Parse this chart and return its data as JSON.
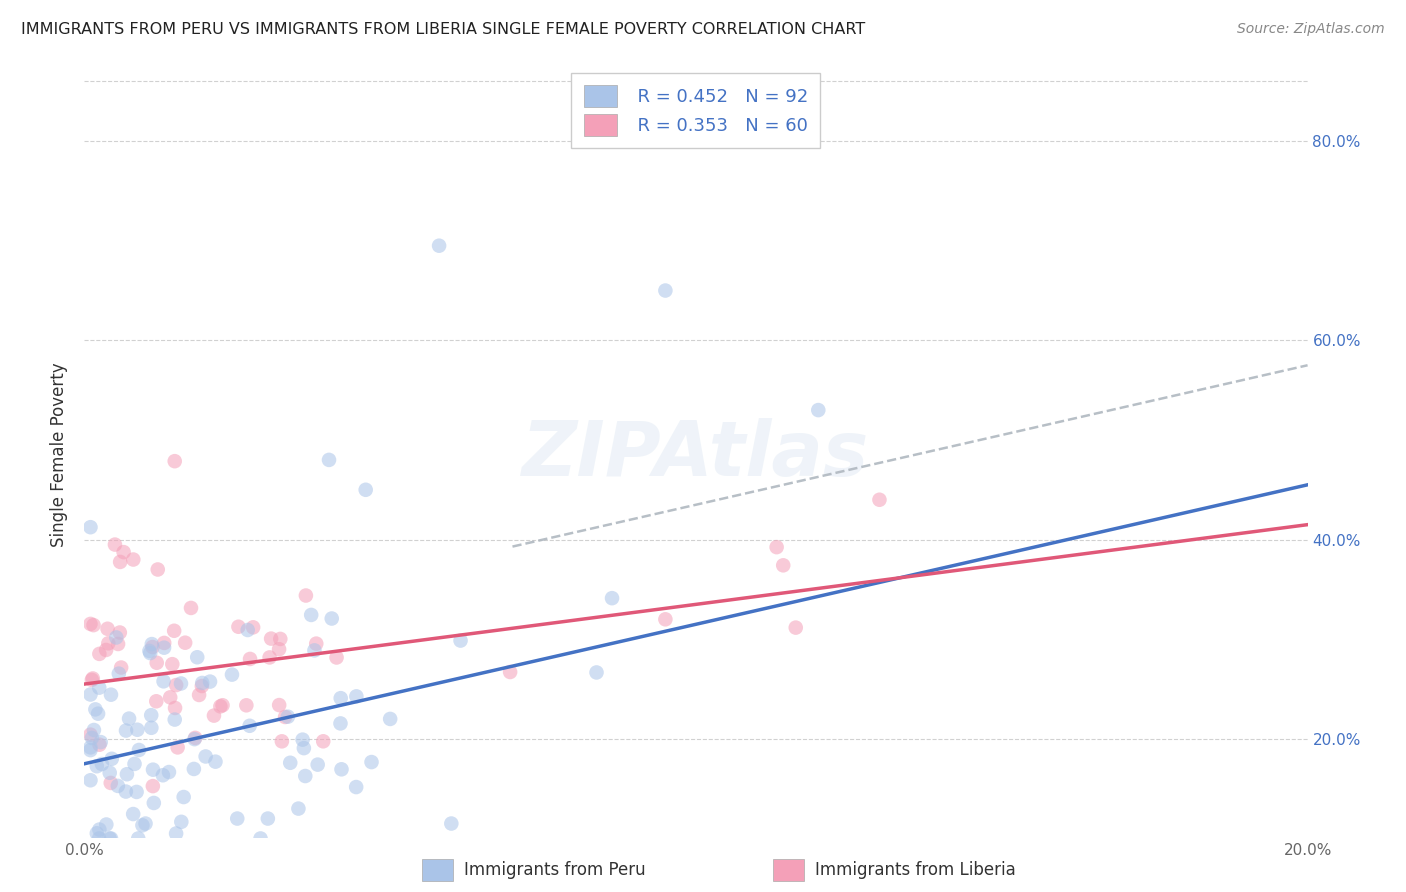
{
  "title": "IMMIGRANTS FROM PERU VS IMMIGRANTS FROM LIBERIA SINGLE FEMALE POVERTY CORRELATION CHART",
  "source": "Source: ZipAtlas.com",
  "ylabel": "Single Female Poverty",
  "y_ticks": [
    0.2,
    0.4,
    0.6,
    0.8
  ],
  "y_tick_labels": [
    "20.0%",
    "40.0%",
    "60.0%",
    "80.0%"
  ],
  "x_ticks": [
    0.0,
    0.05,
    0.1,
    0.15,
    0.2
  ],
  "xlim": [
    0.0,
    0.2
  ],
  "ylim": [
    0.1,
    0.87
  ],
  "peru_color": "#aac4e8",
  "liberia_color": "#f4a0b8",
  "peru_line_color": "#4472c4",
  "liberia_line_color": "#e05878",
  "dashed_line_color": "#b0b8c0",
  "legend_R_peru": "R = 0.452",
  "legend_N_peru": "N = 92",
  "legend_R_liberia": "R = 0.353",
  "legend_N_liberia": "N = 60",
  "legend_label_peru": "Immigrants from Peru",
  "legend_label_liberia": "Immigrants from Liberia",
  "background_color": "#ffffff",
  "grid_color": "#cccccc",
  "title_color": "#222222",
  "source_color": "#888888",
  "label_color": "#4472c4",
  "peru_line_intercept": 0.175,
  "peru_line_slope": 1.4,
  "liberia_line_intercept": 0.255,
  "liberia_line_slope": 0.8,
  "dash_line_intercept": 0.295,
  "dash_line_slope": 1.4
}
